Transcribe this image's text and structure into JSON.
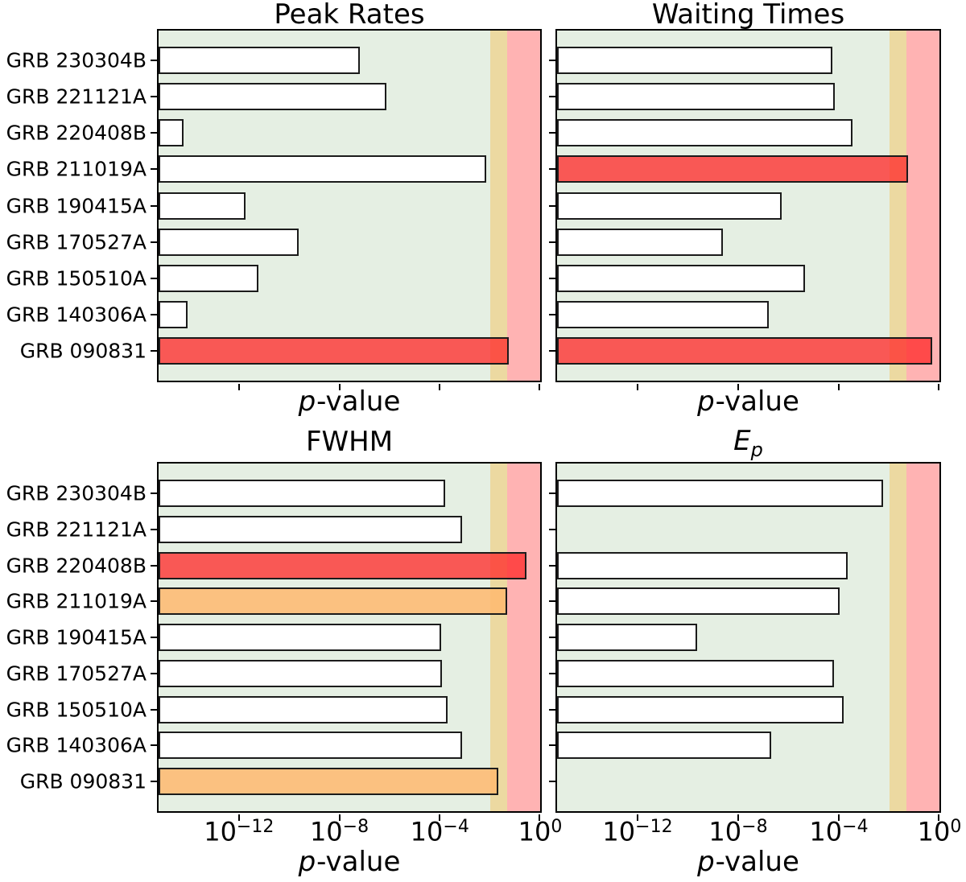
{
  "ylabels": [
    "GRB 230304B",
    "GRB 221121A",
    "GRB 220408B",
    "GRB 211019A",
    "GRB 190415A",
    "GRB 170527A",
    "GRB 150510A",
    "GRB 140306A",
    "GRB 090831"
  ],
  "x_axis": {
    "label_italic": "p",
    "label_rest": "-value",
    "scale": "log",
    "tick_exponents": [
      -12,
      -8,
      -4,
      0
    ],
    "min_exponent": -15.2,
    "max_exponent": 0
  },
  "bands": {
    "green_bg": {
      "color": "#e5efe3",
      "range": "p < 0.01"
    },
    "yellow": {
      "color": "#ecd9a1",
      "from": 0.01,
      "to": 0.05
    },
    "pink": {
      "color": "#ffb3b3",
      "from": 0.05,
      "to": 1.0
    }
  },
  "bar_style": {
    "white": "#ffffff",
    "red": "rgba(255,45,45,0.78)",
    "orange": "rgba(255,185,110,0.85)",
    "edge": "#1b1b1b"
  },
  "chart_data": [
    {
      "type": "bar",
      "orientation": "horizontal",
      "xscale": "log",
      "title": "Peak Rates",
      "xlabel": "p-value",
      "categories": [
        "GRB 230304B",
        "GRB 221121A",
        "GRB 220408B",
        "GRB 211019A",
        "GRB 190415A",
        "GRB 170527A",
        "GRB 150510A",
        "GRB 140306A",
        "GRB 090831"
      ],
      "p_values": [
        6.8e-08,
        7.7e-07,
        6.3e-15,
        0.007,
        1.8e-12,
        2.4e-10,
        6.2e-12,
        9.1e-15,
        0.055
      ],
      "colors": [
        "white",
        "white",
        "white",
        "white",
        "white",
        "white",
        "white",
        "white",
        "red"
      ]
    },
    {
      "type": "bar",
      "orientation": "horizontal",
      "xscale": "log",
      "title": "Waiting Times",
      "xlabel": "p-value",
      "categories": [
        "GRB 230304B",
        "GRB 221121A",
        "GRB 220408B",
        "GRB 211019A",
        "GRB 190415A",
        "GRB 170527A",
        "GRB 150510A",
        "GRB 140306A",
        "GRB 090831"
      ],
      "p_values": [
        5.4e-05,
        6.8e-05,
        0.00034,
        0.055,
        5.4e-07,
        2.5e-09,
        4.5e-06,
        1.7e-07,
        0.5
      ],
      "colors": [
        "white",
        "white",
        "white",
        "red",
        "white",
        "white",
        "white",
        "white",
        "red"
      ]
    },
    {
      "type": "bar",
      "orientation": "horizontal",
      "xscale": "log",
      "title": "FWHM",
      "xlabel": "p-value",
      "categories": [
        "GRB 230304B",
        "GRB 221121A",
        "GRB 220408B",
        "GRB 211019A",
        "GRB 190415A",
        "GRB 170527A",
        "GRB 150510A",
        "GRB 140306A",
        "GRB 090831"
      ],
      "p_values": [
        0.00016,
        0.00076,
        0.29,
        0.048,
        0.00011,
        0.00012,
        0.0002,
        0.0008,
        0.022
      ],
      "colors": [
        "white",
        "white",
        "red",
        "orange",
        "white",
        "white",
        "white",
        "white",
        "orange"
      ]
    },
    {
      "type": "bar",
      "orientation": "horizontal",
      "xscale": "log",
      "title": "E_p",
      "title_base": "E",
      "title_sub": "p",
      "xlabel": "p-value",
      "categories": [
        "GRB 230304B",
        "GRB 221121A",
        "GRB 220408B",
        "GRB 211019A",
        "GRB 190415A",
        "GRB 170527A",
        "GRB 150510A",
        "GRB 140306A",
        "GRB 090831"
      ],
      "p_values": [
        0.0059,
        null,
        0.00023,
        0.00011,
        2.4e-10,
        6.3e-05,
        0.00015,
        2.1e-07,
        null
      ],
      "colors": [
        "white",
        null,
        "white",
        "white",
        "white",
        "white",
        "white",
        "white",
        null
      ]
    }
  ]
}
